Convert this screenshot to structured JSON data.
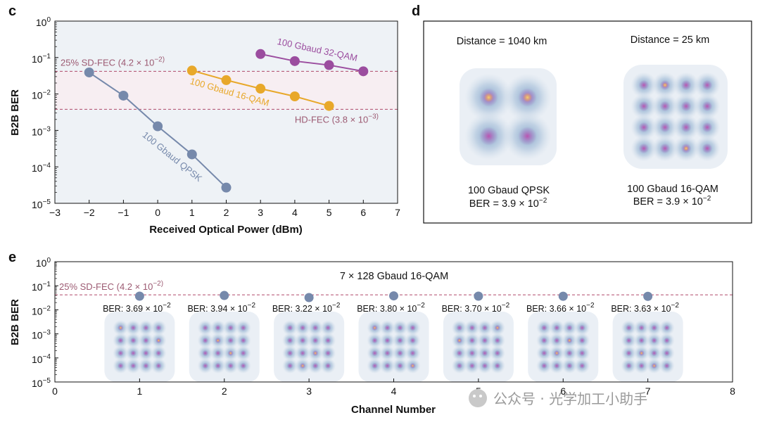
{
  "panels": {
    "c": "c",
    "d": "d",
    "e": "e"
  },
  "watermark": "公众号 · 光学加工小助手",
  "colors": {
    "qpsk": "#7689ab",
    "qam16": "#e8a82a",
    "qam32": "#9b4d9f",
    "fec_line": "#b0486a",
    "fec_label": "#9c5a72",
    "band": "#f7eef2",
    "plot_bg": "#eef2f6"
  },
  "chart_data": [
    {
      "type": "line",
      "panel": "c",
      "xlabel": "Received Optical Power (dBm)",
      "ylabel": "B2B BER",
      "xlim": [
        -3,
        7
      ],
      "ylim_log10": [
        -5,
        0
      ],
      "log_y": true,
      "x_ticks": [
        "−3",
        "−2",
        "−1",
        "0",
        "1",
        "2",
        "3",
        "4",
        "5",
        "6",
        "7"
      ],
      "y_ticks": [
        {
          "base": "10",
          "exp": "0"
        },
        {
          "base": "10",
          "exp": "−1"
        },
        {
          "base": "10",
          "exp": "−2"
        },
        {
          "base": "10",
          "exp": "−3"
        },
        {
          "base": "10",
          "exp": "−4"
        },
        {
          "base": "10",
          "exp": "−5"
        }
      ],
      "series": [
        {
          "name": "100 Gbaud QPSK",
          "color": "#7689ab",
          "x": [
            -2,
            -1,
            0,
            1,
            2
          ],
          "y": [
            0.039,
            0.009,
            0.0013,
            0.00022,
            2.7e-05
          ]
        },
        {
          "name": "100 Gbaud 16-QAM",
          "color": "#e8a82a",
          "x": [
            1,
            2,
            3,
            4,
            5
          ],
          "y": [
            0.044,
            0.024,
            0.014,
            0.0086,
            0.0047
          ]
        },
        {
          "name": "100 Gbaud 32-QAM",
          "color": "#9b4d9f",
          "x": [
            3,
            4,
            5,
            6
          ],
          "y": [
            0.125,
            0.08,
            0.062,
            0.042
          ]
        }
      ],
      "thresholds": [
        {
          "label": "25% SD-FEC (4.2 × 10",
          "label_exp": "−2",
          "value": 0.042
        },
        {
          "label": "HD-FEC (3.8 × 10",
          "label_exp": "−3",
          "value": 0.0038
        }
      ],
      "grid": false
    },
    {
      "type": "scatter",
      "panel": "e",
      "title": "7 × 128 Gbaud 16-QAM",
      "xlabel": "Channel Number",
      "ylabel": "B2B BER",
      "xlim": [
        0,
        8
      ],
      "ylim_log10": [
        -5,
        0
      ],
      "log_y": true,
      "x_ticks": [
        "0",
        "1",
        "2",
        "3",
        "4",
        "5",
        "6",
        "7",
        "8"
      ],
      "y_ticks": [
        {
          "base": "10",
          "exp": "0"
        },
        {
          "base": "10",
          "exp": "−1"
        },
        {
          "base": "10",
          "exp": "−2"
        },
        {
          "base": "10",
          "exp": "−3"
        },
        {
          "base": "10",
          "exp": "−4"
        },
        {
          "base": "10",
          "exp": "−5"
        }
      ],
      "x": [
        1,
        2,
        3,
        4,
        5,
        6,
        7
      ],
      "y": [
        0.0369,
        0.0394,
        0.0322,
        0.038,
        0.037,
        0.0366,
        0.0363
      ],
      "point_labels": [
        {
          "text": "BER: 3.69 × 10",
          "exp": "−2"
        },
        {
          "text": "BER: 3.94 × 10",
          "exp": "−2"
        },
        {
          "text": "BER: 3.22 × 10",
          "exp": "−2"
        },
        {
          "text": "BER: 3.80 × 10",
          "exp": "−2"
        },
        {
          "text": "BER: 3.70 × 10",
          "exp": "−2"
        },
        {
          "text": "BER: 3.66 × 10",
          "exp": "−2"
        },
        {
          "text": "BER: 3.63 × 10",
          "exp": "−2"
        }
      ],
      "thresholds": [
        {
          "label": "25% SD-FEC (4.2 × 10",
          "label_exp": "−2",
          "value": 0.042
        }
      ],
      "grid": false
    }
  ],
  "constellations": {
    "d": [
      {
        "distance": "Distance = 1040 km",
        "format": "100 Gbaud QPSK",
        "ber": "BER = 3.9 × 10",
        "ber_exp": "−2",
        "order": 2
      },
      {
        "distance": "Distance = 25 km",
        "format": "100 Gbaud 16-QAM",
        "ber": "BER = 3.9 × 10",
        "ber_exp": "−2",
        "order": 4
      }
    ],
    "e_order": 4,
    "e_count": 7
  }
}
